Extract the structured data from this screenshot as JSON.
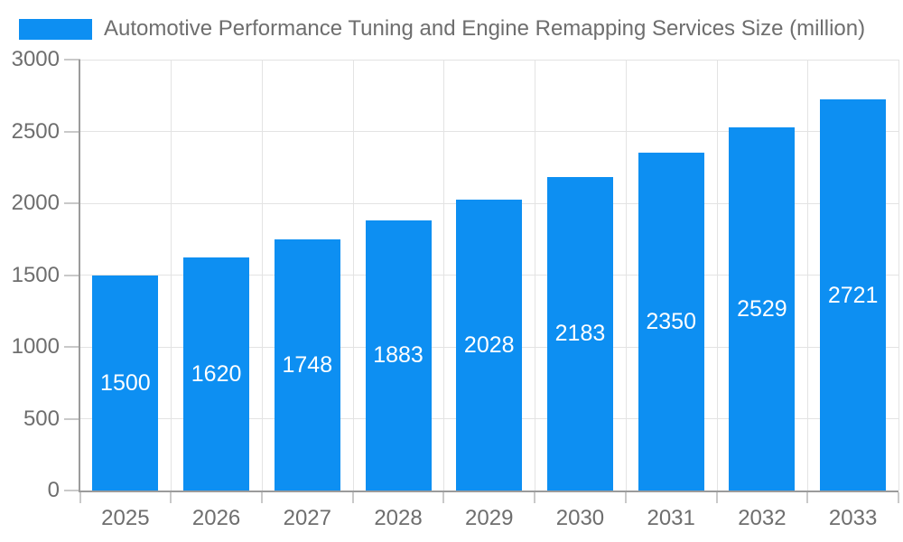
{
  "chart_data": {
    "type": "bar",
    "title": "Automotive Performance Tuning and Engine Remapping Services Size (million)",
    "categories": [
      "2025",
      "2026",
      "2027",
      "2028",
      "2029",
      "2030",
      "2031",
      "2032",
      "2033"
    ],
    "values": [
      1500,
      1620,
      1748,
      1883,
      2028,
      2183,
      2350,
      2529,
      2721
    ],
    "xlabel": "",
    "ylabel": "",
    "ylim": [
      0,
      3000
    ],
    "ytick_step": 500,
    "ytick_labels": [
      "0",
      "500",
      "1000",
      "1500",
      "2000",
      "2500",
      "3000"
    ],
    "grid": true,
    "legend_position": "top-left",
    "value_labels": "centered-inside-bars"
  },
  "colors": {
    "bar": "#0d8ff2",
    "grid": "#e3e3e3",
    "tick": "#c9c9c9",
    "axis": "#9b9b9b",
    "label": "#6e6e6e",
    "bar_label": "#ffffff",
    "background": "#ffffff"
  }
}
